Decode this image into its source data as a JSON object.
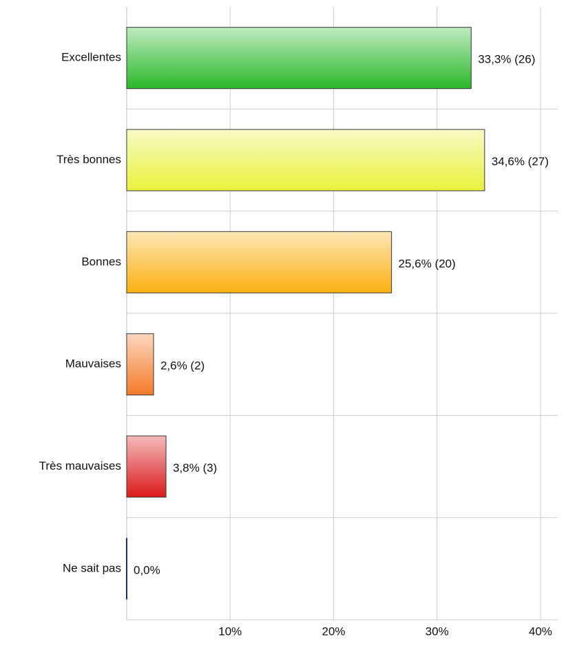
{
  "chart_data": {
    "type": "bar",
    "orientation": "horizontal",
    "categories": [
      "Excellentes",
      "Très bonnes",
      "Bonnes",
      "Mauvaises",
      "Très mauvaises",
      "Ne sait pas"
    ],
    "values": [
      33.3,
      34.6,
      25.6,
      2.6,
      3.8,
      0
    ],
    "value_labels": [
      "33,3% (26)",
      "34,6% (27)",
      "25,6% (20)",
      "2,6% (2)",
      "3,8% (3)",
      "0,0%"
    ],
    "colors": [
      "#2ab82a",
      "#e8f23c",
      "#fbb010",
      "#f47a28",
      "#dc1a1a",
      "#1a2a6a"
    ],
    "xlim": [
      0,
      40
    ],
    "xticks": [
      {
        "value": 10,
        "label": "10%"
      },
      {
        "value": 20,
        "label": "20%"
      },
      {
        "value": 30,
        "label": "30%"
      },
      {
        "value": 40,
        "label": "40%"
      }
    ],
    "grid": true
  }
}
